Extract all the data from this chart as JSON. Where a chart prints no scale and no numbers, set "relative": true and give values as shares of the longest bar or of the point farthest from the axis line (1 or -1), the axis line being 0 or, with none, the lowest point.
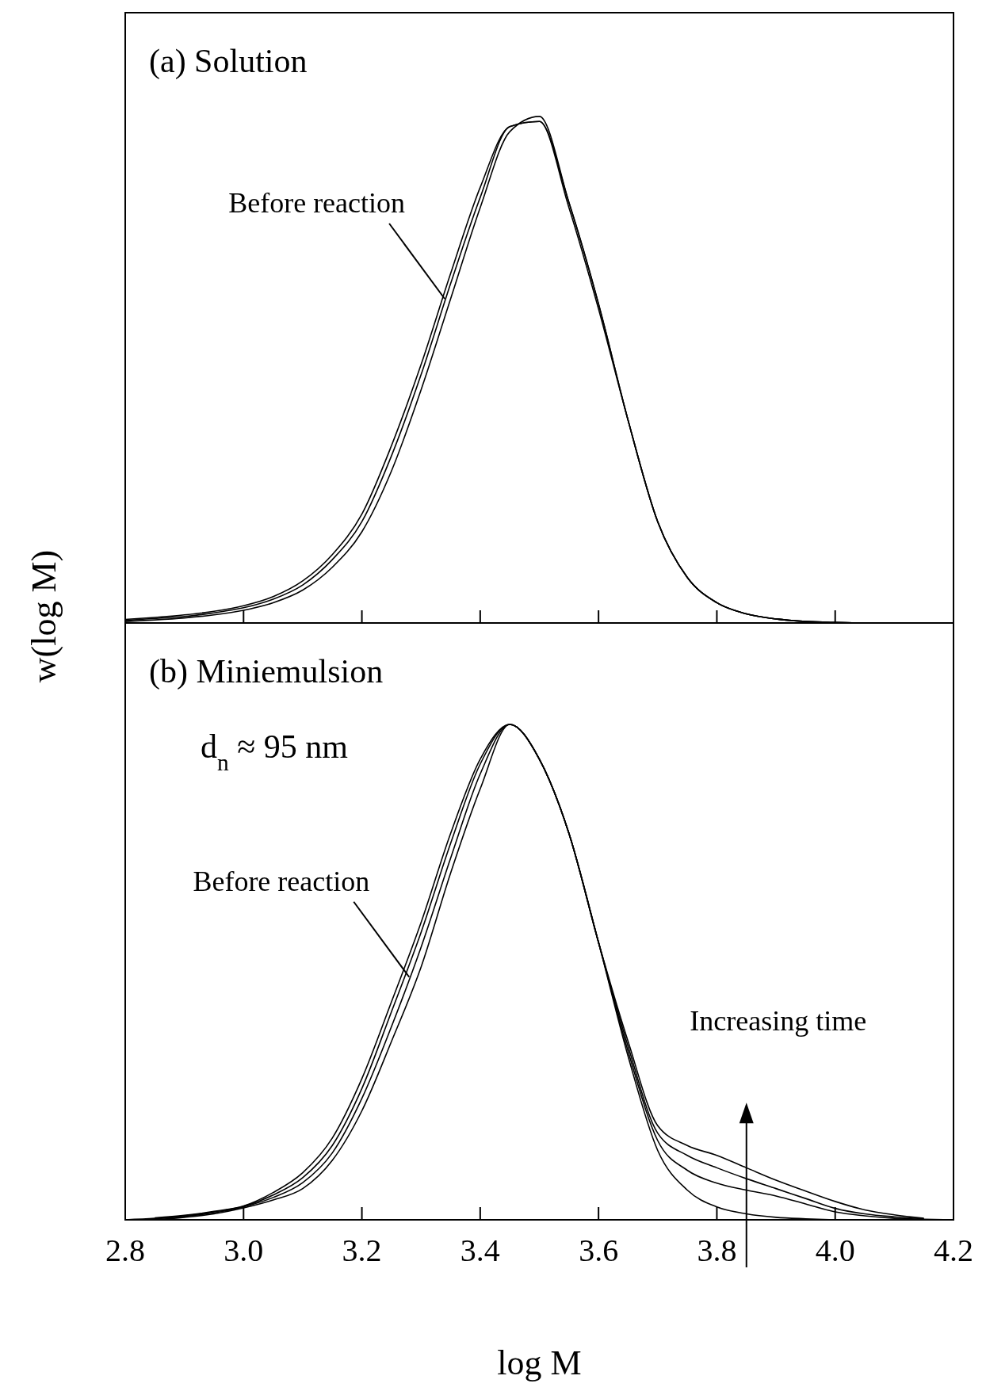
{
  "chart_data": [
    {
      "type": "line",
      "title": "(a) Solution",
      "ylabel": "w(log M)",
      "relative": true,
      "xlim": [
        2.8,
        4.2
      ],
      "xticks": [
        2.8,
        3,
        3.2,
        3.4,
        3.6,
        3.8,
        4,
        4.2
      ],
      "tick_labels": false,
      "marker": "none",
      "line_style": "solid",
      "x": [
        2.8,
        2.85,
        2.9,
        2.95,
        3.0,
        3.05,
        3.1,
        3.15,
        3.2,
        3.25,
        3.3,
        3.35,
        3.4,
        3.45,
        3.5,
        3.55,
        3.6,
        3.65,
        3.7,
        3.75,
        3.8,
        3.85,
        3.9,
        3.95,
        4.0,
        4.05,
        4.1,
        4.15,
        4.2
      ],
      "annotations": [
        {
          "text": "Before reaction",
          "x": 3.34,
          "y": 0.64
        }
      ],
      "series": [
        {
          "color": "#000000",
          "values": [
            0.003,
            0.006,
            0.01,
            0.016,
            0.025,
            0.04,
            0.065,
            0.11,
            0.18,
            0.3,
            0.46,
            0.64,
            0.82,
            0.97,
            1.0,
            0.83,
            0.63,
            0.4,
            0.2,
            0.09,
            0.04,
            0.018,
            0.008,
            0.003,
            0.001,
            0,
            0,
            0,
            0
          ]
        },
        {
          "color": "#000000",
          "values": [
            0.005,
            0.009,
            0.013,
            0.02,
            0.03,
            0.047,
            0.075,
            0.125,
            0.2,
            0.33,
            0.49,
            0.67,
            0.84,
            0.98,
            0.99,
            0.83,
            0.63,
            0.4,
            0.2,
            0.09,
            0.04,
            0.018,
            0.008,
            0.003,
            0.001,
            0,
            0,
            0,
            0
          ]
        },
        {
          "color": "#000000",
          "values": [
            0.007,
            0.011,
            0.016,
            0.023,
            0.034,
            0.052,
            0.083,
            0.135,
            0.215,
            0.35,
            0.51,
            0.69,
            0.86,
            0.98,
            0.99,
            0.82,
            0.62,
            0.4,
            0.2,
            0.09,
            0.04,
            0.018,
            0.008,
            0.003,
            0.001,
            0,
            0,
            0,
            0
          ]
        }
      ]
    },
    {
      "type": "line",
      "title": "(b) Miniemulsion",
      "subtitle": "d$_{n}$ ≈ 95 nm",
      "xlabel": "log M",
      "relative": true,
      "xlim": [
        2.8,
        4.2
      ],
      "xticks": [
        2.8,
        {
          "value": 3,
          "label": "3.0"
        },
        3.2,
        3.4,
        3.6,
        3.8,
        {
          "value": 4,
          "label": "4.0"
        },
        4.2
      ],
      "tick_labels": "x",
      "marker": "none",
      "line_style": "solid",
      "x": [
        2.8,
        2.85,
        2.9,
        2.95,
        3.0,
        3.05,
        3.1,
        3.15,
        3.2,
        3.25,
        3.3,
        3.35,
        3.4,
        3.45,
        3.5,
        3.55,
        3.6,
        3.65,
        3.7,
        3.75,
        3.8,
        3.85,
        3.9,
        3.95,
        4.0,
        4.05,
        4.1,
        4.15,
        4.2
      ],
      "annotations": [
        {
          "text": "Before reaction",
          "x": 3.28,
          "y": 0.49
        },
        "Increasing time"
      ],
      "series": [
        {
          "color": "#000000",
          "values": [
            null,
            0,
            0.005,
            0.012,
            0.024,
            0.04,
            0.063,
            0.12,
            0.22,
            0.36,
            0.51,
            0.7,
            0.87,
            1.0,
            0.93,
            0.78,
            0.56,
            0.33,
            0.14,
            0.06,
            0.026,
            0.012,
            0.005,
            0.002,
            0,
            null,
            null,
            null,
            null
          ]
        },
        {
          "color": "#000000",
          "values": [
            null,
            0.002,
            0.007,
            0.014,
            0.026,
            0.045,
            0.075,
            0.135,
            0.245,
            0.39,
            0.55,
            0.73,
            0.9,
            1.0,
            0.93,
            0.78,
            0.56,
            0.34,
            0.16,
            0.1,
            0.074,
            0.06,
            0.048,
            0.032,
            0.016,
            0.008,
            0.003,
            0.001,
            0
          ]
        },
        {
          "color": "#000000",
          "values": [
            0,
            0.003,
            0.008,
            0.016,
            0.027,
            0.05,
            0.085,
            0.15,
            0.265,
            0.42,
            0.58,
            0.76,
            0.92,
            1.0,
            0.93,
            0.78,
            0.56,
            0.35,
            0.175,
            0.13,
            0.105,
            0.083,
            0.063,
            0.043,
            0.023,
            0.012,
            0.006,
            0.002,
            null
          ]
        },
        {
          "color": "#000000",
          "values": [
            null,
            0.004,
            0.009,
            0.017,
            0.028,
            0.055,
            0.095,
            0.165,
            0.285,
            0.44,
            0.6,
            0.78,
            0.93,
            1.0,
            0.93,
            0.78,
            0.56,
            0.36,
            0.19,
            0.15,
            0.13,
            0.105,
            0.08,
            0.058,
            0.037,
            0.02,
            0.01,
            0.003,
            null
          ]
        }
      ]
    }
  ]
}
